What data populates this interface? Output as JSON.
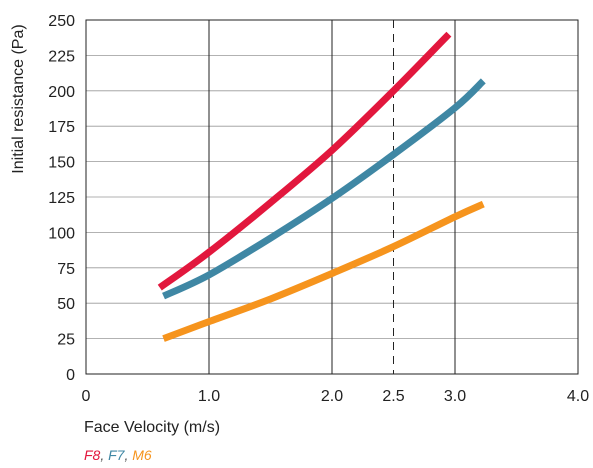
{
  "chart_data": {
    "type": "line",
    "title": "",
    "xlabel": "Face Velocity (m/s)",
    "ylabel": "Initial resistance (Pa)",
    "xlim": [
      0,
      4.0
    ],
    "ylim": [
      0,
      250
    ],
    "x_ticks": [
      {
        "value": 0,
        "label": "0"
      },
      {
        "value": 1.0,
        "label": "1.0"
      },
      {
        "value": 2.0,
        "label": "2.0"
      },
      {
        "value": 2.5,
        "label": "2.5"
      },
      {
        "value": 3.0,
        "label": "3.0"
      },
      {
        "value": 4.0,
        "label": "4.0"
      }
    ],
    "y_ticks": [
      0,
      25,
      50,
      75,
      100,
      125,
      150,
      175,
      200,
      225,
      250
    ],
    "vertical_gridlines": [
      1.0,
      2.0,
      3.0
    ],
    "dashed_reference_line": 2.5,
    "horizontal_grid": true,
    "legend_placement": "bottom-left",
    "series": [
      {
        "name": "F8",
        "color": "#e2173d",
        "x": [
          0.6,
          1.0,
          1.5,
          2.0,
          2.5,
          2.95
        ],
        "y": [
          61,
          86,
          121,
          158,
          200,
          240
        ]
      },
      {
        "name": "F7",
        "color": "#3f87a4",
        "x": [
          0.63,
          1.0,
          1.5,
          2.0,
          2.5,
          3.0,
          3.23
        ],
        "y": [
          55,
          70,
          96,
          124,
          155,
          188,
          207
        ]
      },
      {
        "name": "M6",
        "color": "#f6941d",
        "x": [
          0.63,
          1.0,
          1.5,
          2.0,
          2.5,
          3.0,
          3.23
        ],
        "y": [
          25,
          37,
          53,
          71,
          90,
          111,
          120
        ]
      }
    ]
  },
  "legend": {
    "separator": ", "
  }
}
